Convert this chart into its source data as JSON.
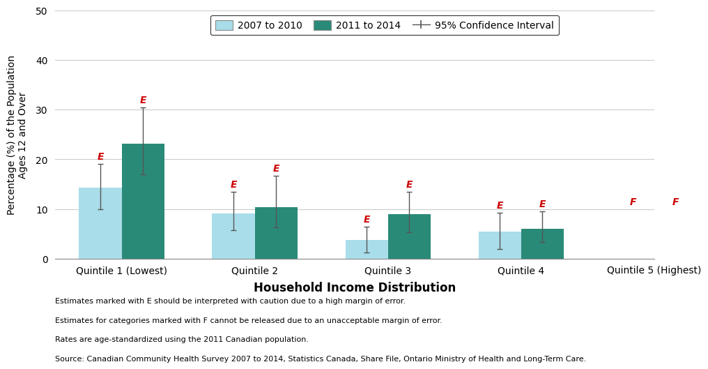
{
  "categories": [
    "Quintile 1 (Lowest)",
    "Quintile 2",
    "Quintile 3",
    "Quintile 4",
    "Quintile 5 (Highest)"
  ],
  "values_2007": [
    14.3,
    9.1,
    3.8,
    5.4,
    null
  ],
  "values_2011": [
    23.2,
    10.4,
    8.9,
    6.0,
    null
  ],
  "ci_2007_low": [
    10.0,
    5.7,
    1.2,
    2.0,
    null
  ],
  "ci_2007_high": [
    19.1,
    13.5,
    6.5,
    9.3,
    null
  ],
  "ci_2011_low": [
    17.0,
    6.3,
    5.3,
    3.4,
    null
  ],
  "ci_2011_high": [
    30.5,
    16.7,
    13.5,
    9.5,
    null
  ],
  "color_2007": "#a8dde9",
  "color_2011": "#2a8a78",
  "bar_width": 0.32,
  "xlabel": "Household Income Distribution",
  "ylabel": "Percentage (%) of the Population\nAges 12 and Over",
  "ylim": [
    0,
    50
  ],
  "yticks": [
    0,
    10,
    20,
    30,
    40,
    50
  ],
  "legend_labels": [
    "2007 to 2010",
    "2011 to 2014",
    "95% Confidence Interval"
  ],
  "footnotes": [
    "Estimates marked with E should be interpreted with caution due to a high margin of error.",
    "Estimates for categories marked with F cannot be released due to an unacceptable margin of error.",
    "Rates are age-standardized using the 2011 Canadian population.",
    "Source: Canadian Community Health Survey 2007 to 2014, Statistics Canada, Share File, Ontario Ministry of Health and Long-Term Care."
  ],
  "label_color": "#cc0000",
  "label_2007": [
    "E",
    "E",
    "E",
    "E",
    "F"
  ],
  "label_2011": [
    "E",
    "E",
    "E",
    "E",
    "F"
  ]
}
